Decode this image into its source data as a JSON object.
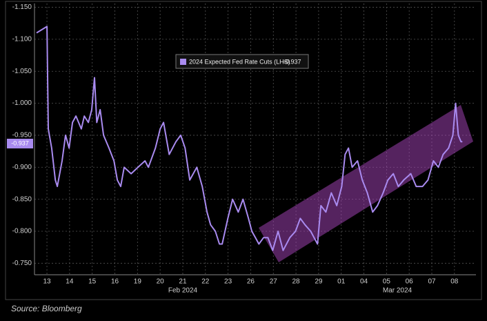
{
  "chart_data": {
    "type": "line",
    "source": "Source: Bloomberg",
    "month_labels": [
      "Feb 2024",
      "Mar 2024"
    ],
    "xticks": [
      {
        "value": 0,
        "label": "13"
      },
      {
        "value": 1,
        "label": "14"
      },
      {
        "value": 2,
        "label": "15"
      },
      {
        "value": 3,
        "label": "16"
      },
      {
        "value": 4,
        "label": "19"
      },
      {
        "value": 5,
        "label": "20"
      },
      {
        "value": 6,
        "label": "21"
      },
      {
        "value": 7,
        "label": "22"
      },
      {
        "value": 8,
        "label": "23"
      },
      {
        "value": 9,
        "label": "26"
      },
      {
        "value": 10,
        "label": "27"
      },
      {
        "value": 11,
        "label": "28"
      },
      {
        "value": 12,
        "label": "29"
      },
      {
        "value": 13,
        "label": "01"
      },
      {
        "value": 14,
        "label": "04"
      },
      {
        "value": 15,
        "label": "05"
      },
      {
        "value": 16,
        "label": "06"
      },
      {
        "value": 17,
        "label": "07"
      },
      {
        "value": 18,
        "label": "08"
      }
    ],
    "xlim": [
      -0.55,
      18.95
    ],
    "ylim": [
      -0.732,
      -1.156
    ],
    "yticks": [
      {
        "value": -1.15,
        "label": "-1.150"
      },
      {
        "value": -1.1,
        "label": "-1.100"
      },
      {
        "value": -1.05,
        "label": "-1.050"
      },
      {
        "value": -1.0,
        "label": "-1.000"
      },
      {
        "value": -0.95,
        "label": "-0.950"
      },
      {
        "value": -0.9,
        "label": "-0.900"
      },
      {
        "value": -0.85,
        "label": "-0.850"
      },
      {
        "value": -0.8,
        "label": "-0.800"
      },
      {
        "value": -0.75,
        "label": "-0.750"
      }
    ],
    "grid": true,
    "series": [
      {
        "name": "2024 Expected Fed Rate Cuts (LHS)",
        "color": "#a98bf0",
        "last_value": -0.937,
        "x": [
          -0.46,
          0,
          0.06,
          0.21,
          0.37,
          0.46,
          0.67,
          0.82,
          0.98,
          1.13,
          1.28,
          1.52,
          1.65,
          1.83,
          1.98,
          2.1,
          2.2,
          2.35,
          2.5,
          2.74,
          2.96,
          3.11,
          3.26,
          3.41,
          3.72,
          4.02,
          4.33,
          4.48,
          4.79,
          5.0,
          5.15,
          5.4,
          5.7,
          5.91,
          6.1,
          6.31,
          6.62,
          6.86,
          7.07,
          7.23,
          7.44,
          7.62,
          7.74,
          7.99,
          8.2,
          8.45,
          8.66,
          8.9,
          9.05,
          9.21,
          9.36,
          9.57,
          9.76,
          9.97,
          10.21,
          10.43,
          10.73,
          10.98,
          11.19,
          11.4,
          11.65,
          11.8,
          11.95,
          12.1,
          12.32,
          12.56,
          12.8,
          13.02,
          13.17,
          13.32,
          13.48,
          13.72,
          13.93,
          14.15,
          14.39,
          14.6,
          14.85,
          15.06,
          15.3,
          15.52,
          15.76,
          16.07,
          16.31,
          16.59,
          16.83,
          17.07,
          17.29,
          17.5,
          17.74,
          17.93,
          18.05,
          18.17,
          18.29,
          18.35
        ],
        "values": [
          -1.11,
          -1.12,
          -0.96,
          -0.93,
          -0.88,
          -0.87,
          -0.91,
          -0.95,
          -0.93,
          -0.97,
          -0.98,
          -0.96,
          -0.98,
          -0.97,
          -0.99,
          -1.04,
          -0.97,
          -0.99,
          -0.95,
          -0.93,
          -0.91,
          -0.88,
          -0.87,
          -0.9,
          -0.89,
          -0.9,
          -0.91,
          -0.9,
          -0.93,
          -0.96,
          -0.97,
          -0.92,
          -0.94,
          -0.95,
          -0.93,
          -0.88,
          -0.9,
          -0.87,
          -0.83,
          -0.81,
          -0.8,
          -0.78,
          -0.78,
          -0.82,
          -0.85,
          -0.83,
          -0.85,
          -0.82,
          -0.8,
          -0.79,
          -0.78,
          -0.79,
          -0.79,
          -0.77,
          -0.8,
          -0.77,
          -0.79,
          -0.8,
          -0.82,
          -0.81,
          -0.8,
          -0.79,
          -0.78,
          -0.84,
          -0.83,
          -0.86,
          -0.84,
          -0.87,
          -0.92,
          -0.93,
          -0.9,
          -0.91,
          -0.88,
          -0.86,
          -0.83,
          -0.84,
          -0.86,
          -0.88,
          -0.89,
          -0.87,
          -0.88,
          -0.89,
          -0.87,
          -0.87,
          -0.88,
          -0.91,
          -0.9,
          -0.92,
          -0.93,
          -0.95,
          -1.0,
          -0.95,
          -0.94,
          -0.94
        ]
      }
    ]
  }
}
